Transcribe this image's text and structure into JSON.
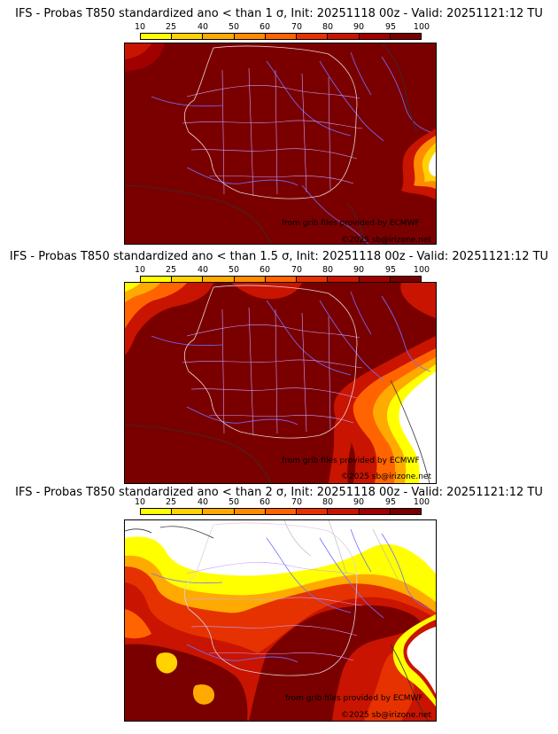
{
  "colorbar": {
    "ticks": [
      "10",
      "25",
      "40",
      "50",
      "60",
      "70",
      "80",
      "90",
      "95",
      "100"
    ],
    "colors": [
      "#ffff00",
      "#ffd200",
      "#ffaa00",
      "#ff8c00",
      "#ff6400",
      "#e63200",
      "#c81400",
      "#a00000",
      "#780000"
    ]
  },
  "panels": [
    {
      "title": "IFS - Probas T850  standardized ano < than 1 σ, Init: 20251118 00z - Valid: 20251121:12 TU",
      "credit_source": "from grib files provided by ECMWF",
      "credit_copyright": "©2025 sb@irizone.net"
    },
    {
      "title": "IFS - Probas T850  standardized ano < than 1.5 σ, Init: 20251118 00z - Valid: 20251121:12 TU",
      "credit_source": "from grib files provided by ECMWF",
      "credit_copyright": "©2025 sb@irizone.net"
    },
    {
      "title": "IFS - Probas T850  standardized ano < than 2 σ, Init: 20251118 00z - Valid: 20251121:12 TU",
      "credit_source": "from grib files provided by ECMWF",
      "credit_copyright": "©2025 sb@irizone.net"
    }
  ]
}
